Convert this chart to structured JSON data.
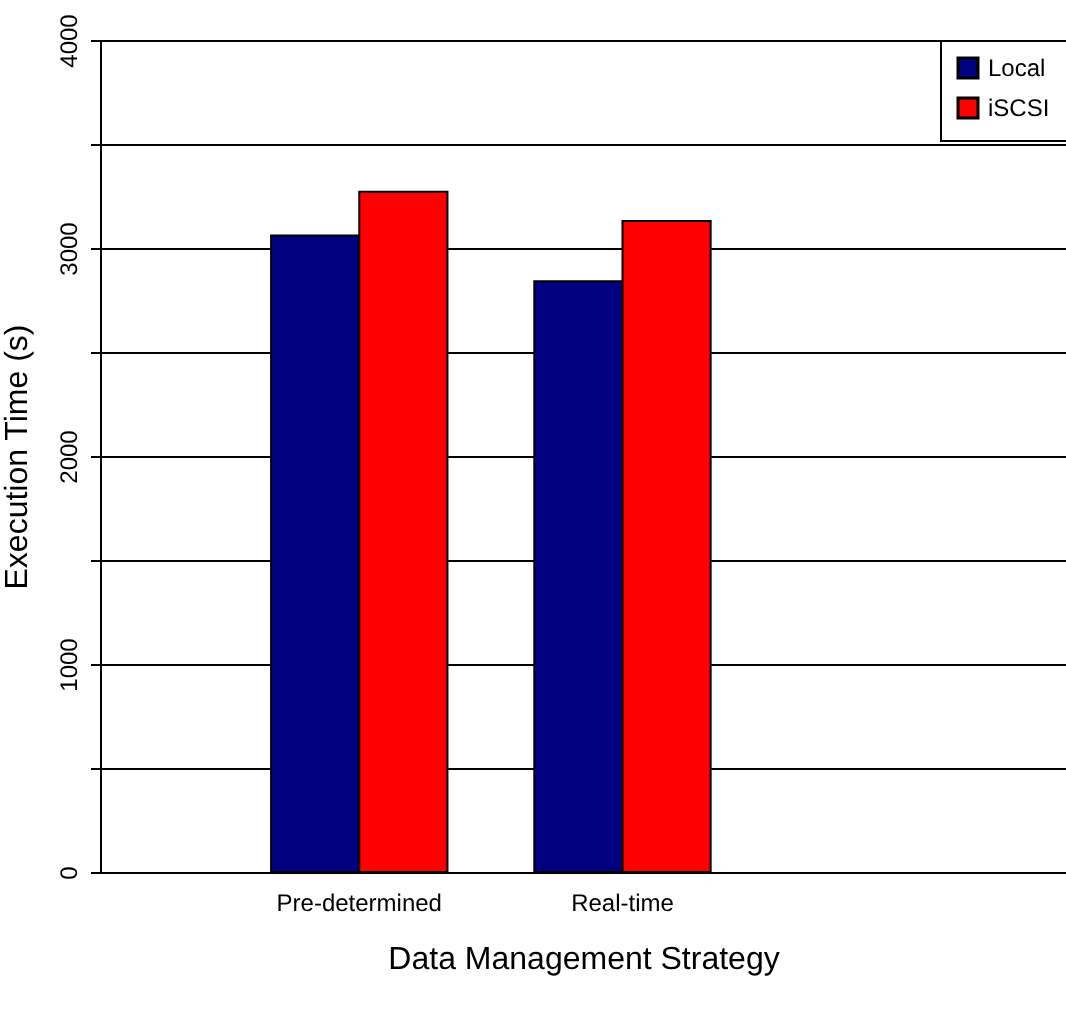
{
  "chart_data": {
    "type": "bar",
    "xlabel": "Data Management Strategy",
    "ylabel": "Execution Time (s)",
    "categories": [
      "Pre-determined",
      "Real-time"
    ],
    "series": [
      {
        "name": "Local",
        "color": "#000080",
        "values": [
          3060,
          2840
        ]
      },
      {
        "name": "iSCSI",
        "color": "#ff0000",
        "values": [
          3270,
          3130
        ]
      }
    ],
    "ylim": [
      0,
      4000
    ],
    "yticks": [
      0,
      {
        "value": 500,
        "label": null
      },
      1000,
      {
        "value": 1500,
        "label": null
      },
      2000,
      {
        "value": 2500,
        "label": null
      },
      3000,
      {
        "value": 3500,
        "label": null
      },
      4000
    ],
    "grid": "y",
    "legend": "top right"
  }
}
